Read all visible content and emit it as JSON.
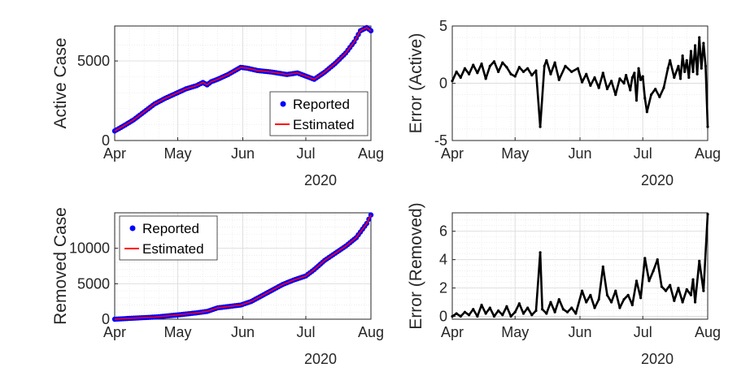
{
  "chart_data": [
    {
      "id": "active",
      "type": "scatter+line",
      "ylabel": "Active Case",
      "year_label": "2020",
      "x_ticks": [
        "Apr",
        "May",
        "Jun",
        "Jul",
        "Aug"
      ],
      "x_range": [
        "2020-04-01",
        "2020-08-01"
      ],
      "ylim": [
        0,
        7200
      ],
      "y_ticks": [
        0,
        5000
      ],
      "grid": true,
      "legend": {
        "placement": "bottom-right",
        "entries": [
          "Reported",
          "Estimated"
        ]
      },
      "series": [
        {
          "name": "Reported",
          "style": "marker",
          "color": "#0000ff"
        },
        {
          "name": "Estimated",
          "style": "line",
          "color": "#ff0000"
        }
      ],
      "points": [
        [
          "2020-04-01",
          600
        ],
        [
          "2020-04-05",
          900
        ],
        [
          "2020-04-10",
          1300
        ],
        [
          "2020-04-15",
          1800
        ],
        [
          "2020-04-20",
          2300
        ],
        [
          "2020-04-25",
          2650
        ],
        [
          "2020-04-30",
          2950
        ],
        [
          "2020-05-05",
          3250
        ],
        [
          "2020-05-10",
          3450
        ],
        [
          "2020-05-13",
          3650
        ],
        [
          "2020-05-15",
          3500
        ],
        [
          "2020-05-17",
          3700
        ],
        [
          "2020-05-20",
          3850
        ],
        [
          "2020-05-25",
          4150
        ],
        [
          "2020-05-31",
          4600
        ],
        [
          "2020-06-03",
          4550
        ],
        [
          "2020-06-08",
          4400
        ],
        [
          "2020-06-15",
          4300
        ],
        [
          "2020-06-22",
          4150
        ],
        [
          "2020-06-27",
          4250
        ],
        [
          "2020-07-01",
          4050
        ],
        [
          "2020-07-05",
          3850
        ],
        [
          "2020-07-10",
          4300
        ],
        [
          "2020-07-15",
          4850
        ],
        [
          "2020-07-20",
          5500
        ],
        [
          "2020-07-24",
          6200
        ],
        [
          "2020-07-27",
          6900
        ],
        [
          "2020-07-30",
          7100
        ],
        [
          "2020-08-01",
          6900
        ]
      ]
    },
    {
      "id": "error-active",
      "type": "line",
      "ylabel": "Error (Active)",
      "year_label": "2020",
      "x_ticks": [
        "Apr",
        "May",
        "Jun",
        "Jul",
        "Aug"
      ],
      "x_range": [
        "2020-04-01",
        "2020-08-01"
      ],
      "ylim": [
        -5,
        5
      ],
      "y_ticks": [
        -5,
        0,
        5
      ],
      "grid": true,
      "series": [
        {
          "name": "",
          "color": "#000000"
        }
      ],
      "points": [
        [
          "2020-04-01",
          0.2
        ],
        [
          "2020-04-03",
          1.0
        ],
        [
          "2020-04-05",
          0.5
        ],
        [
          "2020-04-07",
          1.3
        ],
        [
          "2020-04-09",
          0.8
        ],
        [
          "2020-04-11",
          1.6
        ],
        [
          "2020-04-13",
          0.9
        ],
        [
          "2020-04-15",
          1.7
        ],
        [
          "2020-04-17",
          0.4
        ],
        [
          "2020-04-19",
          1.5
        ],
        [
          "2020-04-21",
          1.9
        ],
        [
          "2020-04-23",
          1.0
        ],
        [
          "2020-04-25",
          1.8
        ],
        [
          "2020-04-27",
          1.4
        ],
        [
          "2020-04-29",
          0.8
        ],
        [
          "2020-05-01",
          0.6
        ],
        [
          "2020-05-03",
          1.4
        ],
        [
          "2020-05-05",
          1.0
        ],
        [
          "2020-05-07",
          1.3
        ],
        [
          "2020-05-09",
          0.7
        ],
        [
          "2020-05-11",
          1.1
        ],
        [
          "2020-05-13",
          -3.8
        ],
        [
          "2020-05-15",
          1.5
        ],
        [
          "2020-05-16",
          2.0
        ],
        [
          "2020-05-18",
          0.8
        ],
        [
          "2020-05-20",
          1.8
        ],
        [
          "2020-05-22",
          0.3
        ],
        [
          "2020-05-25",
          1.5
        ],
        [
          "2020-05-28",
          1.0
        ],
        [
          "2020-05-31",
          1.3
        ],
        [
          "2020-06-02",
          0.1
        ],
        [
          "2020-06-04",
          0.8
        ],
        [
          "2020-06-06",
          -0.2
        ],
        [
          "2020-06-08",
          0.5
        ],
        [
          "2020-06-10",
          -0.4
        ],
        [
          "2020-06-12",
          0.9
        ],
        [
          "2020-06-14",
          -0.5
        ],
        [
          "2020-06-16",
          0.2
        ],
        [
          "2020-06-18",
          -1.0
        ],
        [
          "2020-06-20",
          0.4
        ],
        [
          "2020-06-22",
          0.0
        ],
        [
          "2020-06-23",
          0.7
        ],
        [
          "2020-06-25",
          -0.6
        ],
        [
          "2020-06-26",
          0.5
        ],
        [
          "2020-06-27",
          0.9
        ],
        [
          "2020-06-28",
          -1.5
        ],
        [
          "2020-06-29",
          1.3
        ],
        [
          "2020-06-30",
          0.3
        ],
        [
          "2020-07-01",
          0.6
        ],
        [
          "2020-07-02",
          -1.3
        ],
        [
          "2020-07-03",
          -2.5
        ],
        [
          "2020-07-05",
          -1.0
        ],
        [
          "2020-07-07",
          -0.5
        ],
        [
          "2020-07-09",
          -1.2
        ],
        [
          "2020-07-11",
          -0.4
        ],
        [
          "2020-07-13",
          1.3
        ],
        [
          "2020-07-14",
          2.0
        ],
        [
          "2020-07-16",
          0.5
        ],
        [
          "2020-07-18",
          1.5
        ],
        [
          "2020-07-19",
          0.4
        ],
        [
          "2020-07-20",
          2.4
        ],
        [
          "2020-07-21",
          1.0
        ],
        [
          "2020-07-22",
          2.0
        ],
        [
          "2020-07-23",
          0.5
        ],
        [
          "2020-07-24",
          2.8
        ],
        [
          "2020-07-25",
          1.0
        ],
        [
          "2020-07-26",
          3.3
        ],
        [
          "2020-07-27",
          0.8
        ],
        [
          "2020-07-28",
          4.0
        ],
        [
          "2020-07-29",
          1.3
        ],
        [
          "2020-07-30",
          3.5
        ],
        [
          "2020-07-31",
          1.5
        ],
        [
          "2020-08-01",
          -3.8
        ]
      ]
    },
    {
      "id": "removed",
      "type": "scatter+line",
      "ylabel": "Removed Case",
      "year_label": "2020",
      "x_ticks": [
        "Apr",
        "May",
        "Jun",
        "Jul",
        "Aug"
      ],
      "x_range": [
        "2020-04-01",
        "2020-08-01"
      ],
      "ylim": [
        0,
        15000
      ],
      "y_ticks": [
        0,
        5000,
        10000
      ],
      "grid": true,
      "legend": {
        "placement": "top-left",
        "entries": [
          "Reported",
          "Estimated"
        ]
      },
      "series": [
        {
          "name": "Reported",
          "style": "marker",
          "color": "#0000ff"
        },
        {
          "name": "Estimated",
          "style": "line",
          "color": "#ff0000"
        }
      ],
      "points": [
        [
          "2020-04-01",
          0
        ],
        [
          "2020-04-10",
          150
        ],
        [
          "2020-04-20",
          300
        ],
        [
          "2020-05-01",
          600
        ],
        [
          "2020-05-10",
          900
        ],
        [
          "2020-05-15",
          1100
        ],
        [
          "2020-05-20",
          1600
        ],
        [
          "2020-05-31",
          2000
        ],
        [
          "2020-06-05",
          2500
        ],
        [
          "2020-06-10",
          3300
        ],
        [
          "2020-06-15",
          4100
        ],
        [
          "2020-06-20",
          4900
        ],
        [
          "2020-06-25",
          5500
        ],
        [
          "2020-07-01",
          6100
        ],
        [
          "2020-07-05",
          7000
        ],
        [
          "2020-07-10",
          8300
        ],
        [
          "2020-07-15",
          9300
        ],
        [
          "2020-07-20",
          10300
        ],
        [
          "2020-07-25",
          11500
        ],
        [
          "2020-07-30",
          13500
        ],
        [
          "2020-08-01",
          14700
        ]
      ]
    },
    {
      "id": "error-removed",
      "type": "line",
      "ylabel": "Error (Removed)",
      "year_label": "2020",
      "x_ticks": [
        "Apr",
        "May",
        "Jun",
        "Jul",
        "Aug"
      ],
      "x_range": [
        "2020-04-01",
        "2020-08-01"
      ],
      "ylim": [
        -0.2,
        7.3
      ],
      "y_ticks": [
        0,
        2,
        4,
        6
      ],
      "grid": true,
      "series": [
        {
          "name": "",
          "color": "#000000"
        }
      ],
      "points": [
        [
          "2020-04-01",
          0.0
        ],
        [
          "2020-04-03",
          0.2
        ],
        [
          "2020-04-05",
          0.0
        ],
        [
          "2020-04-07",
          0.3
        ],
        [
          "2020-04-09",
          0.1
        ],
        [
          "2020-04-11",
          0.5
        ],
        [
          "2020-04-13",
          0.0
        ],
        [
          "2020-04-15",
          0.8
        ],
        [
          "2020-04-17",
          0.2
        ],
        [
          "2020-04-19",
          0.6
        ],
        [
          "2020-04-21",
          0.0
        ],
        [
          "2020-04-23",
          0.4
        ],
        [
          "2020-04-25",
          0.1
        ],
        [
          "2020-04-27",
          0.7
        ],
        [
          "2020-04-29",
          0.0
        ],
        [
          "2020-05-01",
          0.3
        ],
        [
          "2020-05-03",
          0.9
        ],
        [
          "2020-05-05",
          0.2
        ],
        [
          "2020-05-07",
          0.6
        ],
        [
          "2020-05-09",
          0.1
        ],
        [
          "2020-05-11",
          0.4
        ],
        [
          "2020-05-13",
          4.5
        ],
        [
          "2020-05-14",
          0.5
        ],
        [
          "2020-05-16",
          0.2
        ],
        [
          "2020-05-18",
          1.0
        ],
        [
          "2020-05-20",
          0.3
        ],
        [
          "2020-05-22",
          1.2
        ],
        [
          "2020-05-24",
          0.5
        ],
        [
          "2020-05-26",
          0.3
        ],
        [
          "2020-05-28",
          0.6
        ],
        [
          "2020-05-30",
          0.2
        ],
        [
          "2020-06-02",
          1.8
        ],
        [
          "2020-06-04",
          1.0
        ],
        [
          "2020-06-06",
          1.5
        ],
        [
          "2020-06-08",
          0.6
        ],
        [
          "2020-06-10",
          1.2
        ],
        [
          "2020-06-12",
          3.5
        ],
        [
          "2020-06-14",
          1.5
        ],
        [
          "2020-06-16",
          1.0
        ],
        [
          "2020-06-18",
          1.8
        ],
        [
          "2020-06-20",
          0.6
        ],
        [
          "2020-06-22",
          1.2
        ],
        [
          "2020-06-24",
          1.5
        ],
        [
          "2020-06-26",
          0.8
        ],
        [
          "2020-06-28",
          2.5
        ],
        [
          "2020-06-30",
          1.3
        ],
        [
          "2020-07-02",
          4.1
        ],
        [
          "2020-07-04",
          2.5
        ],
        [
          "2020-07-06",
          3.2
        ],
        [
          "2020-07-08",
          4.0
        ],
        [
          "2020-07-10",
          2.1
        ],
        [
          "2020-07-12",
          1.8
        ],
        [
          "2020-07-14",
          2.2
        ],
        [
          "2020-07-16",
          1.1
        ],
        [
          "2020-07-18",
          2.0
        ],
        [
          "2020-07-20",
          1.0
        ],
        [
          "2020-07-22",
          1.9
        ],
        [
          "2020-07-24",
          1.5
        ],
        [
          "2020-07-25",
          2.6
        ],
        [
          "2020-07-26",
          1.0
        ],
        [
          "2020-07-28",
          3.9
        ],
        [
          "2020-07-30",
          1.8
        ],
        [
          "2020-08-01",
          7.2
        ]
      ]
    }
  ]
}
